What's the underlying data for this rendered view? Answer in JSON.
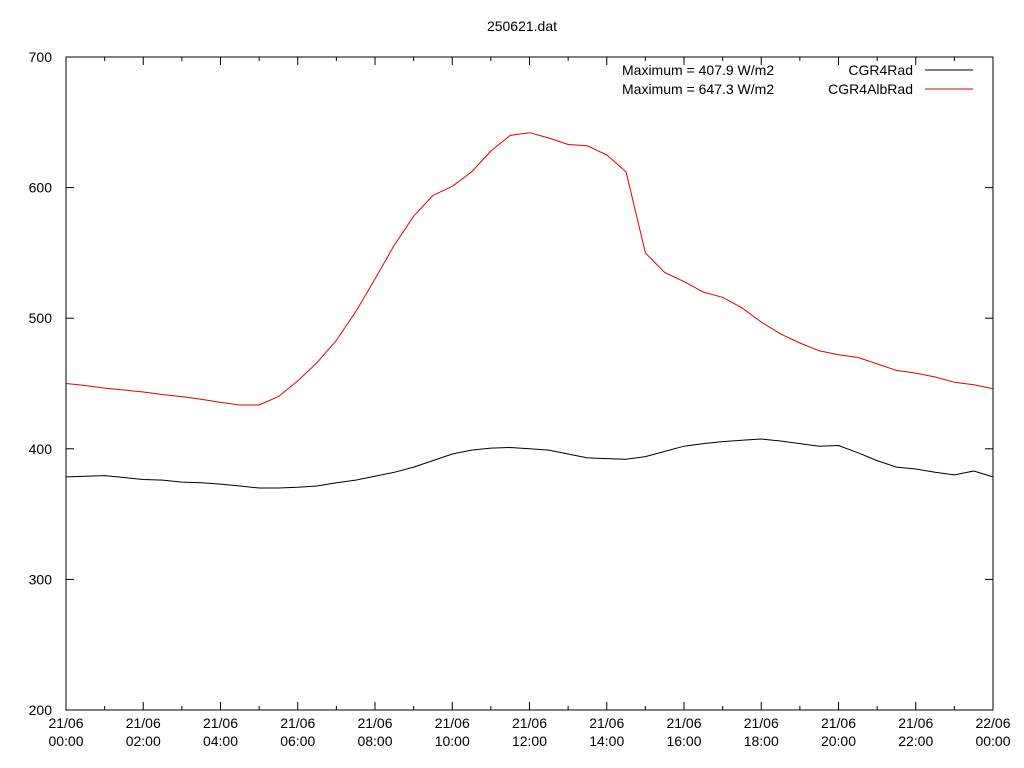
{
  "chart_data": {
    "type": "line",
    "title": "250621.dat",
    "xlabel": "",
    "ylabel": "",
    "xlim": [
      0,
      24
    ],
    "ylim": [
      200,
      700
    ],
    "yticks": [
      200,
      300,
      400,
      500,
      600,
      700
    ],
    "xtick_labels": [
      [
        "21/06",
        "00:00"
      ],
      [
        "21/06",
        "02:00"
      ],
      [
        "21/06",
        "04:00"
      ],
      [
        "21/06",
        "06:00"
      ],
      [
        "21/06",
        "08:00"
      ],
      [
        "21/06",
        "10:00"
      ],
      [
        "21/06",
        "12:00"
      ],
      [
        "21/06",
        "14:00"
      ],
      [
        "21/06",
        "16:00"
      ],
      [
        "21/06",
        "18:00"
      ],
      [
        "21/06",
        "20:00"
      ],
      [
        "21/06",
        "22:00"
      ],
      [
        "22/06",
        "00:00"
      ]
    ],
    "annotations": [
      "Maximum = 407.9 W/m2",
      "Maximum = 647.3 W/m2"
    ],
    "legend_position": "top-right",
    "grid": false,
    "series": [
      {
        "name": "CGR4Rad",
        "color": "#000000",
        "x": [
          0,
          0.5,
          1,
          1.5,
          2,
          2.5,
          3,
          3.5,
          4,
          4.5,
          5,
          5.5,
          6,
          6.5,
          7,
          7.5,
          8,
          8.5,
          9,
          9.5,
          10,
          10.5,
          11,
          11.5,
          12,
          12.5,
          13,
          13.5,
          14,
          14.5,
          15,
          15.5,
          16,
          16.5,
          17,
          17.5,
          18,
          18.5,
          19,
          19.5,
          20,
          20.5,
          21,
          21.5,
          22,
          22.5,
          23,
          23.5,
          24
        ],
        "values": [
          378.5,
          379,
          379.5,
          378,
          376.5,
          376,
          374.5,
          374,
          373,
          371.5,
          370,
          370,
          370.5,
          371.5,
          374,
          376,
          379,
          382,
          386,
          391,
          396,
          399,
          400.5,
          401,
          400,
          399,
          396,
          393,
          392.5,
          392,
          394,
          398,
          402,
          404,
          405.5,
          406.5,
          407.5,
          406,
          404,
          402,
          402.5,
          397,
          391,
          386,
          384.5,
          382,
          380,
          383,
          378.5
        ]
      },
      {
        "name": "CGR4AlbRad",
        "color": "#e00000",
        "x": [
          0,
          0.5,
          1,
          1.5,
          2,
          2.5,
          3,
          3.5,
          4,
          4.5,
          5,
          5.5,
          6,
          6.5,
          7,
          7.5,
          8,
          8.5,
          9,
          9.5,
          10,
          10.5,
          11,
          11.5,
          12,
          12.5,
          13,
          13.5,
          14,
          14.5,
          15,
          15.5,
          16,
          16.5,
          17,
          17.5,
          18,
          18.5,
          19,
          19.5,
          20,
          20.5,
          21,
          21.5,
          22,
          22.5,
          23,
          23.5,
          24
        ],
        "values": [
          450,
          448.5,
          446.5,
          445,
          443.5,
          441.5,
          440,
          438,
          435.5,
          433.5,
          433.5,
          440,
          452,
          466,
          483,
          505,
          530,
          556,
          578,
          594,
          601,
          612,
          628,
          640,
          642,
          638,
          633,
          632,
          625,
          612,
          550,
          535,
          528,
          520,
          516,
          508,
          497,
          488,
          481,
          475,
          472,
          470,
          465,
          460,
          458,
          455,
          451,
          449,
          446
        ]
      }
    ]
  }
}
